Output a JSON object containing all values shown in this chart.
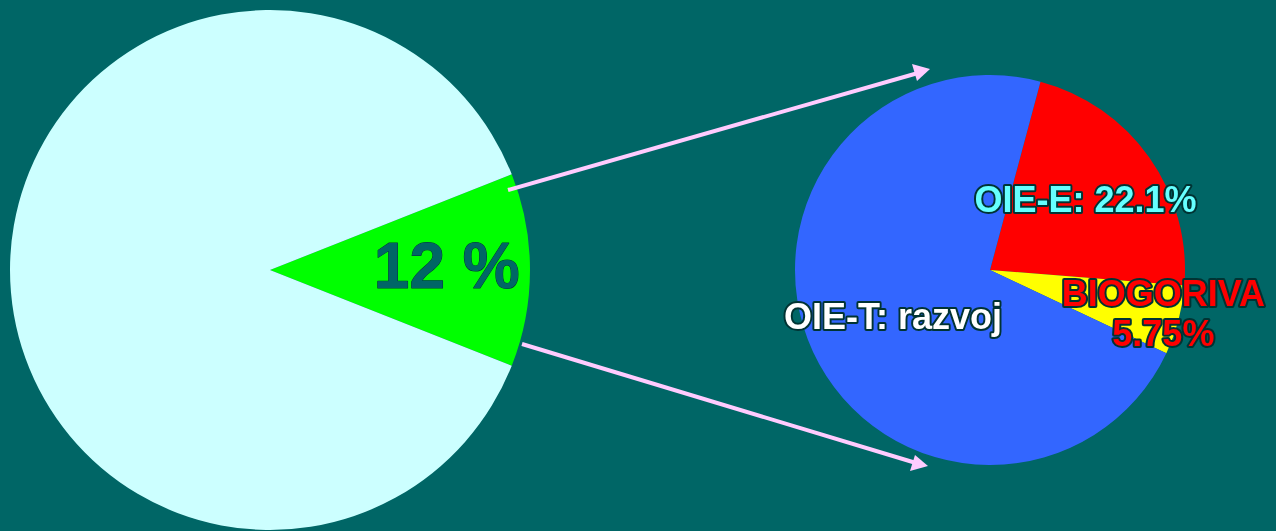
{
  "chart_data": [
    {
      "type": "pie",
      "categories": [
        null,
        null
      ],
      "values": [
        12,
        88
      ],
      "colors": [
        "#00ff00",
        "#ccffff"
      ],
      "value_labels": [
        "12 %",
        null
      ],
      "legend": false
    },
    {
      "type": "pie",
      "categories": [
        "OIE-E",
        "BIOGORIVA",
        "OIE-T: razvoj"
      ],
      "values": [
        22.1,
        5.75,
        72.15
      ],
      "colors": [
        "#ff0000",
        "#ffff00",
        "#3366ff"
      ],
      "value_labels": [
        "22.1%",
        "5.75%",
        null
      ],
      "legend": false
    }
  ]
}
